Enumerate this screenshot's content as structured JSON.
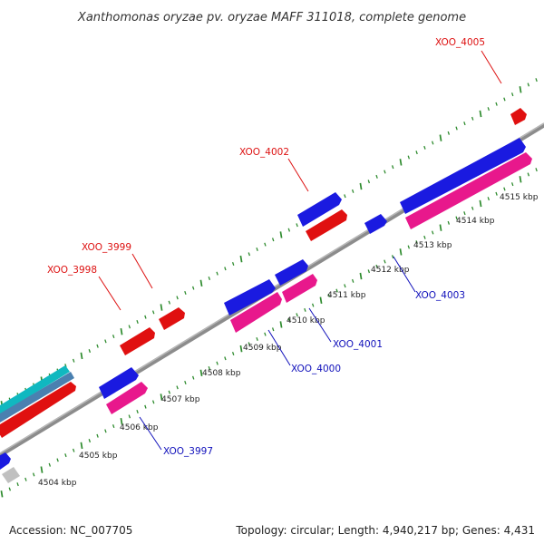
{
  "title": "Xanthomonas oryzae pv. oryzae MAFF 311018, complete genome",
  "footer": {
    "accession": "Accession: NC_007705",
    "summary": "Topology: circular; Length: 4,940,217 bp; Genes: 4,431"
  },
  "colors": {
    "backbone": "#8c8c8c",
    "tick": "#2e8b2e",
    "forward_cds": "#1a1ae0",
    "forward_other": "#e01010",
    "reverse_cds": "#e8188c",
    "misc_teal": "#10b8c0",
    "misc_gray": "#c0c0c0",
    "label_red": "#dd1111",
    "label_blue": "#1111bb"
  },
  "kbp_labels": [
    "4504 kbp",
    "4505 kbp",
    "4506 kbp",
    "4507 kbp",
    "4508 kbp",
    "4509 kbp",
    "4510 kbp",
    "4511 kbp",
    "4512 kbp",
    "4513 kbp",
    "4514 kbp",
    "4515 kbp"
  ],
  "gene_labels": {
    "xoo_4005": "XOO_4005",
    "xoo_4002": "XOO_4002",
    "xoo_3999": "XOO_3999",
    "xoo_3998": "XOO_3998",
    "xoo_4003": "XOO_4003",
    "xoo_4001": "XOO_4001",
    "xoo_4000": "XOO_4000",
    "xoo_3997": "XOO_3997"
  }
}
